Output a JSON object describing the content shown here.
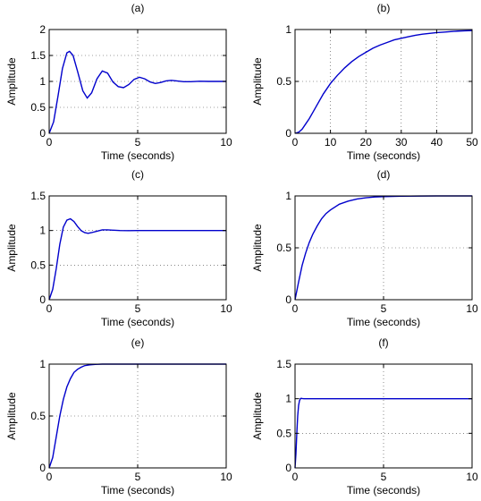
{
  "figure": {
    "line_color": "#0000cc",
    "grid": true
  },
  "chart_data": [
    {
      "type": "line",
      "title": "(a)",
      "xlabel": "Time (seconds)",
      "ylabel": "Amplitude",
      "xlim": [
        0,
        10
      ],
      "ylim": [
        0,
        2
      ],
      "xticks": [
        0,
        5,
        10
      ],
      "yticks": [
        0,
        0.5,
        1,
        1.5,
        2
      ],
      "x": [
        0,
        0.25,
        0.5,
        0.75,
        1.0,
        1.15,
        1.35,
        1.6,
        1.9,
        2.15,
        2.4,
        2.7,
        3.0,
        3.3,
        3.6,
        3.9,
        4.2,
        4.5,
        4.8,
        5.1,
        5.4,
        5.7,
        6.0,
        6.3,
        6.6,
        6.9,
        7.2,
        7.6,
        8.0,
        8.5,
        9.0,
        9.5,
        10.0
      ],
      "y": [
        0,
        0.22,
        0.72,
        1.25,
        1.55,
        1.58,
        1.5,
        1.2,
        0.82,
        0.68,
        0.78,
        1.05,
        1.2,
        1.16,
        0.99,
        0.9,
        0.88,
        0.94,
        1.04,
        1.08,
        1.05,
        0.99,
        0.96,
        0.98,
        1.01,
        1.02,
        1.01,
        0.995,
        0.995,
        1.003,
        1.0,
        1.0,
        1.0
      ]
    },
    {
      "type": "line",
      "title": "(b)",
      "xlabel": "Time (seconds)",
      "ylabel": "Amplitude",
      "xlim": [
        0,
        50
      ],
      "ylim": [
        0,
        1
      ],
      "xticks": [
        0,
        10,
        20,
        30,
        40,
        50
      ],
      "yticks": [
        0,
        0.5,
        1
      ],
      "x": [
        0,
        1,
        2,
        3,
        4,
        5,
        6,
        8,
        10,
        12,
        14,
        16,
        18,
        20,
        22,
        24,
        26,
        28,
        30,
        32,
        34,
        36,
        38,
        40,
        42,
        44,
        46,
        48,
        50
      ],
      "y": [
        0,
        0.01,
        0.04,
        0.09,
        0.14,
        0.2,
        0.26,
        0.38,
        0.48,
        0.56,
        0.63,
        0.69,
        0.74,
        0.78,
        0.82,
        0.85,
        0.875,
        0.9,
        0.915,
        0.93,
        0.945,
        0.955,
        0.963,
        0.97,
        0.975,
        0.98,
        0.985,
        0.988,
        0.99
      ]
    },
    {
      "type": "line",
      "title": "(c)",
      "xlabel": "Time (seconds)",
      "ylabel": "Amplitude",
      "xlim": [
        0,
        10
      ],
      "ylim": [
        0,
        1.5
      ],
      "xticks": [
        0,
        5,
        10
      ],
      "yticks": [
        0,
        0.5,
        1,
        1.5
      ],
      "x": [
        0,
        0.2,
        0.4,
        0.6,
        0.8,
        1.0,
        1.2,
        1.4,
        1.6,
        1.8,
        2.0,
        2.2,
        2.4,
        2.7,
        3.0,
        3.3,
        3.6,
        4.0,
        4.5,
        5.0,
        6.0,
        7.0,
        8.0,
        9.0,
        10.0
      ],
      "y": [
        0,
        0.15,
        0.45,
        0.8,
        1.05,
        1.15,
        1.17,
        1.13,
        1.06,
        1.0,
        0.97,
        0.96,
        0.97,
        0.99,
        1.01,
        1.01,
        1.005,
        1.0,
        0.998,
        1.0,
        1.0,
        1.0,
        1.0,
        1.0,
        1.0
      ]
    },
    {
      "type": "line",
      "title": "(d)",
      "xlabel": "Time (seconds)",
      "ylabel": "Amplitude",
      "xlim": [
        0,
        10
      ],
      "ylim": [
        0,
        1
      ],
      "xticks": [
        0,
        5,
        10
      ],
      "yticks": [
        0,
        0.5,
        1
      ],
      "x": [
        0,
        0.2,
        0.4,
        0.6,
        0.8,
        1.0,
        1.25,
        1.5,
        1.75,
        2.0,
        2.5,
        3.0,
        3.5,
        4.0,
        4.5,
        5.0,
        6.0,
        7.0,
        8.0,
        9.0,
        10.0
      ],
      "y": [
        0,
        0.17,
        0.33,
        0.45,
        0.55,
        0.63,
        0.71,
        0.78,
        0.83,
        0.865,
        0.92,
        0.95,
        0.97,
        0.982,
        0.99,
        0.993,
        0.997,
        0.999,
        1.0,
        1.0,
        1.0
      ]
    },
    {
      "type": "line",
      "title": "(e)",
      "xlabel": "Time (seconds)",
      "ylabel": "Amplitude",
      "xlim": [
        0,
        10
      ],
      "ylim": [
        0,
        1
      ],
      "xticks": [
        0,
        5,
        10
      ],
      "yticks": [
        0,
        0.5,
        1
      ],
      "x": [
        0,
        0.2,
        0.4,
        0.6,
        0.8,
        1.0,
        1.2,
        1.4,
        1.6,
        1.8,
        2.0,
        2.3,
        2.6,
        3.0,
        3.5,
        4.0,
        5.0,
        6.0,
        7.0,
        8.0,
        9.0,
        10.0
      ],
      "y": [
        0,
        0.1,
        0.3,
        0.5,
        0.66,
        0.78,
        0.86,
        0.92,
        0.95,
        0.97,
        0.985,
        0.993,
        0.997,
        1.0,
        1.0,
        1.0,
        1.0,
        1.0,
        1.0,
        1.0,
        1.0,
        1.0
      ]
    },
    {
      "type": "line",
      "title": "(f)",
      "xlabel": "Time (seconds)",
      "ylabel": "Amplitude",
      "xlim": [
        0,
        10
      ],
      "ylim": [
        0,
        1.5
      ],
      "xticks": [
        0,
        5,
        10
      ],
      "yticks": [
        0,
        0.5,
        1,
        1.5
      ],
      "x": [
        0,
        0.05,
        0.1,
        0.15,
        0.2,
        0.25,
        0.3,
        0.35,
        0.4,
        0.5,
        0.6,
        0.8,
        1.0,
        2.0,
        4.0,
        6.0,
        8.0,
        10.0
      ],
      "y": [
        0,
        0.2,
        0.5,
        0.75,
        0.9,
        0.97,
        1.0,
        1.005,
        1.003,
        1.0,
        1.0,
        1.0,
        1.0,
        1.0,
        1.0,
        1.0,
        1.0,
        1.0
      ]
    }
  ]
}
